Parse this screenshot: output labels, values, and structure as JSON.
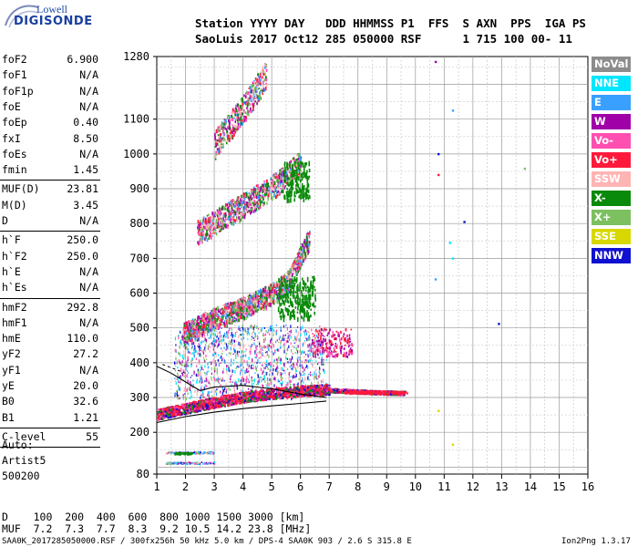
{
  "logo": {
    "top": "Lowell",
    "bottom": "DIGISONDE"
  },
  "header": {
    "line1": "Station YYYY DAY   DDD HHMMSS P1  FFS  S AXN  PPS  IGA PS",
    "line2": "SaoLuis 2017 Oct12 285 050000 RSF      1 715 100 00- 11"
  },
  "params": [
    {
      "name": "foF2",
      "value": "6.900"
    },
    {
      "name": "foF1",
      "value": "N/A"
    },
    {
      "name": "foF1p",
      "value": "N/A"
    },
    {
      "name": "foE",
      "value": "N/A"
    },
    {
      "name": "foEp",
      "value": "0.40"
    },
    {
      "name": "fxI",
      "value": "8.50"
    },
    {
      "name": "foEs",
      "value": "N/A"
    },
    {
      "name": "fmin",
      "value": "1.45"
    },
    {
      "name": "MUF(D)",
      "value": "23.81"
    },
    {
      "name": "M(D)",
      "value": "3.45"
    },
    {
      "name": "D",
      "value": "N/A"
    },
    {
      "name": "h`F",
      "value": "250.0"
    },
    {
      "name": "h`F2",
      "value": "250.0"
    },
    {
      "name": "h`E",
      "value": "N/A"
    },
    {
      "name": "h`Es",
      "value": "N/A"
    },
    {
      "name": "hmF2",
      "value": "292.8"
    },
    {
      "name": "hmF1",
      "value": "N/A"
    },
    {
      "name": "hmE",
      "value": "110.0"
    },
    {
      "name": "yF2",
      "value": "27.2"
    },
    {
      "name": "yF1",
      "value": "N/A"
    },
    {
      "name": "yE",
      "value": "20.0"
    },
    {
      "name": "B0",
      "value": "32.6"
    },
    {
      "name": "B1",
      "value": "1.21"
    },
    {
      "name": "C-level",
      "value": "55"
    }
  ],
  "scaling": {
    "line1": "Auto:",
    "line2": "Artist5",
    "line3": "500200"
  },
  "legend": [
    {
      "label": "NoVal",
      "bg": "#8c8c8c",
      "fg": "#ffffff"
    },
    {
      "label": "NNE",
      "bg": "#00e6ff",
      "fg": "#ffffff"
    },
    {
      "label": "E",
      "bg": "#3aa0ff",
      "fg": "#ffffff"
    },
    {
      "label": "W",
      "bg": "#a000a8",
      "fg": "#ffffff"
    },
    {
      "label": "Vo-",
      "bg": "#ff4fb0",
      "fg": "#ffffff"
    },
    {
      "label": "Vo+",
      "bg": "#ff1a3c",
      "fg": "#ffffff"
    },
    {
      "label": "SSW",
      "bg": "#ffb4b4",
      "fg": "#ffffff"
    },
    {
      "label": "X-",
      "bg": "#0a8a0a",
      "fg": "#ffffff"
    },
    {
      "label": "X+",
      "bg": "#7cc060",
      "fg": "#ffffff"
    },
    {
      "label": "SSE",
      "bg": "#d8d800",
      "fg": "#ffffff"
    },
    {
      "label": "NNW",
      "bg": "#1010d0",
      "fg": "#ffffff"
    }
  ],
  "muf_table": {
    "line1": "D    100  200  400  600  800 1000 1500 3000 [km]",
    "line2": "MUF  7.2  7.3  7.7  8.3  9.2 10.5 14.2 23.8 [MHz]"
  },
  "footer": {
    "left": "SAA0K_2017285050000.RSF / 300fx256h 50 kHz 5.0 km / DPS-4 SAA0K 903 / 2.6 S 315.8 E",
    "right": "Ion2Png 1.3.17"
  },
  "chart_data": {
    "type": "scatter",
    "title": "",
    "xlabel": "",
    "ylabel": "",
    "xlim": [
      1,
      16
    ],
    "ylim": [
      80,
      1280
    ],
    "x_ticks": [
      1,
      2,
      3,
      4,
      5,
      6,
      7,
      8,
      9,
      10,
      11,
      12,
      13,
      14,
      15,
      16
    ],
    "y_ticks": [
      80,
      200,
      300,
      400,
      500,
      600,
      700,
      800,
      900,
      1000,
      1100,
      1280
    ],
    "grid": true,
    "legend_position": "right",
    "traces": [
      {
        "mode": "F-layer O trace",
        "freq": [
          1.0,
          2.0,
          3.0,
          4.0,
          5.0,
          6.0,
          6.9,
          7.5,
          8.0,
          8.5,
          9.0,
          9.5
        ],
        "height": [
          250,
          268,
          285,
          300,
          310,
          318,
          322,
          320,
          318,
          316,
          315,
          314
        ]
      },
      {
        "mode": "2nd hop",
        "freq": [
          1.9,
          3.0,
          4.0,
          5.0,
          5.6,
          6.3
        ],
        "height": [
          505,
          550,
          580,
          620,
          660,
          780
        ]
      },
      {
        "mode": "3rd hop",
        "freq": [
          2.4,
          3.0,
          4.0,
          5.0,
          6.0
        ],
        "height": [
          800,
          830,
          880,
          930,
          1000
        ]
      },
      {
        "mode": "4th hop",
        "freq": [
          3.0,
          4.0,
          4.8
        ],
        "height": [
          1060,
          1160,
          1260
        ]
      },
      {
        "mode": "Es/low",
        "freq": [
          1.6,
          2.2,
          2.6
        ],
        "height": [
          120,
          130,
          115
        ]
      }
    ],
    "profile_curves": [
      {
        "name": "lower",
        "freq": [
          1.0,
          2.0,
          3.0,
          4.0,
          5.0,
          6.0,
          6.9
        ],
        "height": [
          228,
          245,
          258,
          268,
          276,
          283,
          290
        ]
      },
      {
        "name": "upper",
        "freq": [
          1.0,
          1.5,
          2.0,
          2.5,
          3.0,
          4.0,
          5.0,
          6.0,
          6.9
        ],
        "height": [
          390,
          370,
          345,
          320,
          330,
          335,
          325,
          310,
          300
        ]
      }
    ],
    "misc_points": [
      {
        "freq": 10.7,
        "height": 1265,
        "color": "#a000a8"
      },
      {
        "freq": 11.3,
        "height": 1125,
        "color": "#3aa0ff"
      },
      {
        "freq": 10.8,
        "height": 1000,
        "color": "#1010d0"
      },
      {
        "freq": 10.8,
        "height": 940,
        "color": "#ff1a3c"
      },
      {
        "freq": 11.7,
        "height": 805,
        "color": "#1010d0"
      },
      {
        "freq": 12.9,
        "height": 512,
        "color": "#1010d0"
      },
      {
        "freq": 13.8,
        "height": 958,
        "color": "#7cc060"
      },
      {
        "freq": 11.2,
        "height": 745,
        "color": "#00e6ff"
      },
      {
        "freq": 11.3,
        "height": 700,
        "color": "#00e6ff"
      },
      {
        "freq": 10.7,
        "height": 640,
        "color": "#3aa0ff"
      },
      {
        "freq": 10.8,
        "height": 262,
        "color": "#d8d800"
      },
      {
        "freq": 11.3,
        "height": 165,
        "color": "#d8d800"
      }
    ]
  }
}
